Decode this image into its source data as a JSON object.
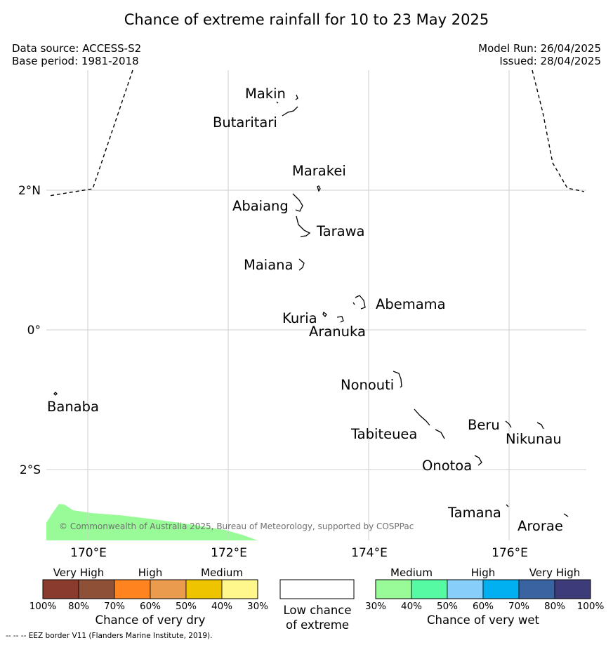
{
  "header": {
    "title": "Chance of extreme rainfall for 10 to 23 May 2025",
    "data_source": "Data source: ACCESS-S2",
    "base_period": "Base period: 1981-2018",
    "model_run": "Model Run: 26/04/2025",
    "issued": "Issued: 28/04/2025"
  },
  "map": {
    "lat_ticks": [
      "2°N",
      "0°",
      "2°S"
    ],
    "lon_ticks": [
      "170°E",
      "172°E",
      "174°E",
      "176°E"
    ],
    "islands": {
      "makin": "Makin",
      "butaritari": "Butaritari",
      "marakei": "Marakei",
      "abaiang": "Abaiang",
      "tarawa": "Tarawa",
      "maiana": "Maiana",
      "abemama": "Abemama",
      "kuria": "Kuria",
      "aranuka": "Aranuka",
      "nonouti": "Nonouti",
      "banaba": "Banaba",
      "tabiteuea": "Tabiteuea",
      "beru": "Beru",
      "nikunau": "Nikunau",
      "onotoa": "Onotoa",
      "tamana": "Tamana",
      "arorae": "Arorae"
    },
    "copyright": "© Commonwealth of Australia 2025, Bureau of Meteorology, supported by COSPPac",
    "wet_medium_area_color": "#98fb98"
  },
  "legend": {
    "dry": {
      "headers": [
        "Very High",
        "High",
        "Medium"
      ],
      "colors": [
        "#8b3a2e",
        "#8e5138",
        "#ff8420",
        "#eb9b4e",
        "#eec400",
        "#fff68c"
      ],
      "ticks": [
        "100%",
        "80%",
        "70%",
        "60%",
        "50%",
        "40%",
        "30%"
      ],
      "title": "Chance of very dry"
    },
    "low": {
      "title_line1": "Low chance",
      "title_line2": "of extreme",
      "color": "#ffffff"
    },
    "wet": {
      "headers": [
        "Medium",
        "High",
        "Very High"
      ],
      "colors": [
        "#98fb98",
        "#55faa3",
        "#87cefa",
        "#00b0f0",
        "#3963a1",
        "#3d3b79"
      ],
      "ticks": [
        "30%",
        "40%",
        "50%",
        "60%",
        "70%",
        "80%",
        "100%"
      ],
      "title": "Chance of very wet"
    }
  },
  "footer": {
    "eez_note": "--  --  -- EEZ border V11 (Flanders Marine Institute, 2019)."
  }
}
